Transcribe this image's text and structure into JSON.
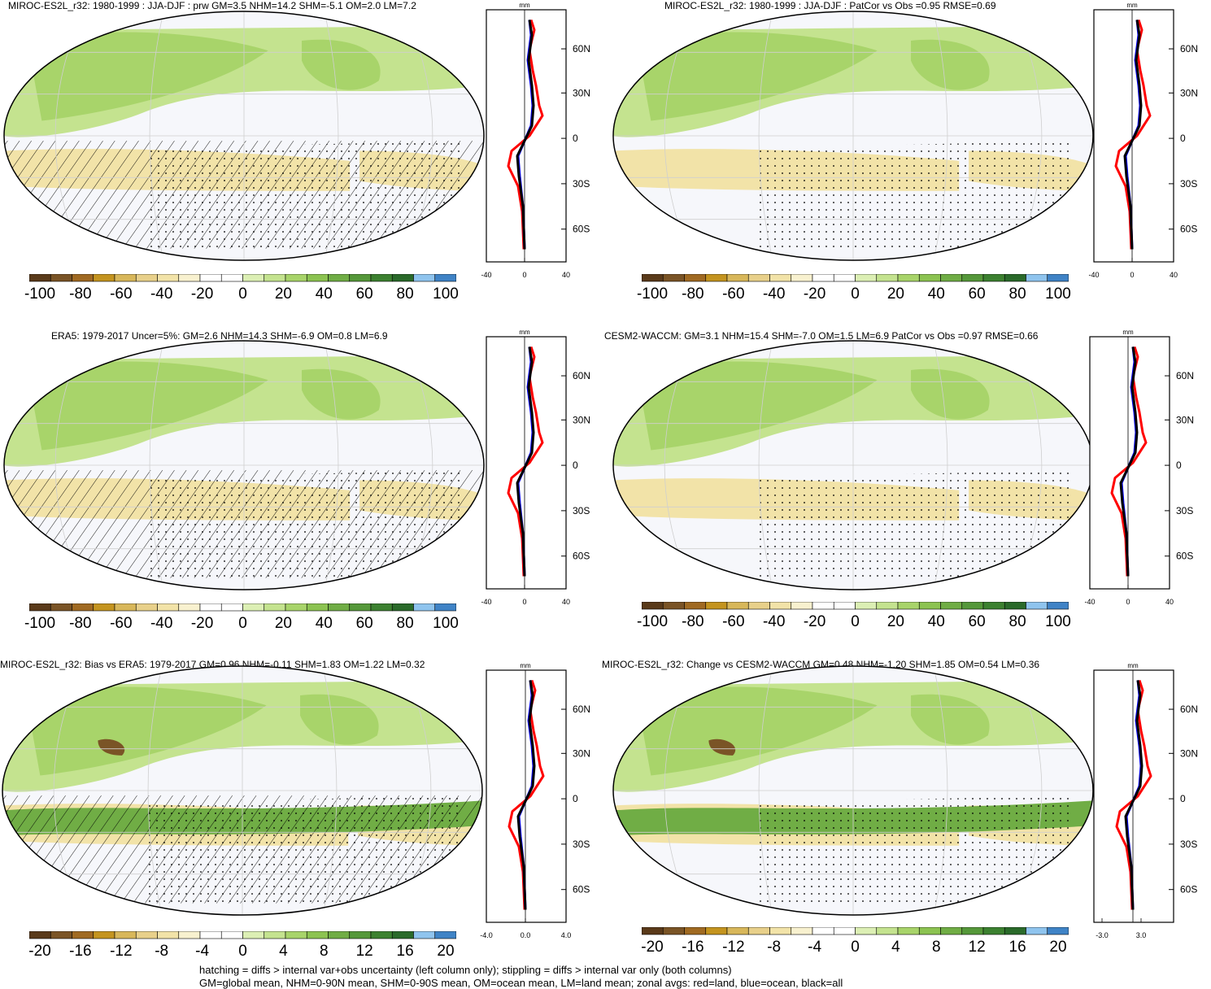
{
  "panels": [
    {
      "title": "MIROC-ES2L_r32: 1980-1999 : JJA-DJF : prw GM=3.5 NHM=14.2 SHM=-5.1 OM=2.0 LM=7.2",
      "zonal_unit": "mm",
      "zonal_xticks": [
        "-40",
        "0",
        "40"
      ],
      "lat_labels": [
        "60N",
        "30N",
        "0",
        "30S",
        "60S"
      ],
      "colorbar_ticks": [
        "-100",
        "-80",
        "-60",
        "-40",
        "-20",
        "0",
        "20",
        "40",
        "60",
        "80",
        "100"
      ],
      "hatching": true
    },
    {
      "title": "MIROC-ES2L_r32: 1980-1999 : JJA-DJF : PatCor vs Obs =0.95 RMSE=0.69",
      "zonal_unit": "mm",
      "zonal_xticks": [
        "-40",
        "0",
        "40"
      ],
      "lat_labels": [
        "60N",
        "30N",
        "0",
        "30S",
        "60S"
      ],
      "colorbar_ticks": [
        "-100",
        "-80",
        "-60",
        "-40",
        "-20",
        "0",
        "20",
        "40",
        "60",
        "80",
        "100"
      ],
      "hatching": false
    },
    {
      "title": "ERA5: 1979-2017 Uncer=5%: GM=2.6 NHM=14.3 SHM=-6.9 OM=0.8 LM=6.9",
      "zonal_unit": "mm",
      "zonal_xticks": [
        "-40",
        "0",
        "40"
      ],
      "lat_labels": [
        "60N",
        "30N",
        "0",
        "30S",
        "60S"
      ],
      "colorbar_ticks": [
        "-100",
        "-80",
        "-60",
        "-40",
        "-20",
        "0",
        "20",
        "40",
        "60",
        "80",
        "100"
      ],
      "hatching": true
    },
    {
      "title": "CESM2-WACCM: GM=3.1 NHM=15.4 SHM=-7.0 OM=1.5 LM=6.9 PatCor vs Obs =0.97 RMSE=0.66",
      "zonal_unit": "mm",
      "zonal_xticks": [
        "-40",
        "0",
        "40"
      ],
      "lat_labels": [
        "60N",
        "30N",
        "0",
        "30S",
        "60S"
      ],
      "colorbar_ticks": [
        "-100",
        "-80",
        "-60",
        "-40",
        "-20",
        "0",
        "20",
        "40",
        "60",
        "80",
        "100"
      ],
      "hatching": false
    },
    {
      "title": "MIROC-ES2L_r32: Bias vs ERA5: 1979-2017 GM=0.96 NHM=-0.11 SHM=1.83 OM=1.22 LM=0.32",
      "zonal_unit": "mm",
      "zonal_xticks": [
        "-4.0",
        "0.0",
        "4.0"
      ],
      "lat_labels": [
        "60N",
        "30N",
        "0",
        "30S",
        "60S"
      ],
      "colorbar_ticks": [
        "-20",
        "-16",
        "-12",
        "-8",
        "-4",
        "0",
        "4",
        "8",
        "12",
        "16",
        "20"
      ],
      "hatching": true
    },
    {
      "title": "MIROC-ES2L_r32: Change vs CESM2-WACCM GM=0.48 NHM=-1.20 SHM=1.85 OM=0.54 LM=0.36",
      "zonal_unit": "mm",
      "zonal_xticks": [
        "-3.0",
        "3.0"
      ],
      "lat_labels": [
        "60N",
        "30N",
        "0",
        "30S",
        "60S"
      ],
      "colorbar_ticks": [
        "-20",
        "-16",
        "-12",
        "-8",
        "-4",
        "0",
        "4",
        "8",
        "12",
        "16",
        "20"
      ],
      "hatching": false
    }
  ],
  "colorbar_colors": [
    "#5a3a1a",
    "#7a5426",
    "#a06a22",
    "#c4941f",
    "#d8b75a",
    "#e8d08a",
    "#f2e3a8",
    "#f8f1cf",
    "#ffffff",
    "#ffffff",
    "#dcefb4",
    "#c4e38f",
    "#a8d46a",
    "#8cc351",
    "#70ad45",
    "#55983a",
    "#3c8130",
    "#2a6a2a",
    "#8fc4ee",
    "#3f83c6"
  ],
  "zonal_line_colors": {
    "land": "#ff0000",
    "ocean": "#0000ff",
    "all": "#000000"
  },
  "footer": {
    "line1": "hatching = diffs > internal var+obs uncertainty (left column only); stippling = diffs > internal var only (both columns)",
    "line2": "GM=global mean, NHM=0-90N mean, SHM=0-90S mean, OM=ocean mean, LM=land mean; zonal avgs: red=land, blue=ocean, black=all"
  }
}
